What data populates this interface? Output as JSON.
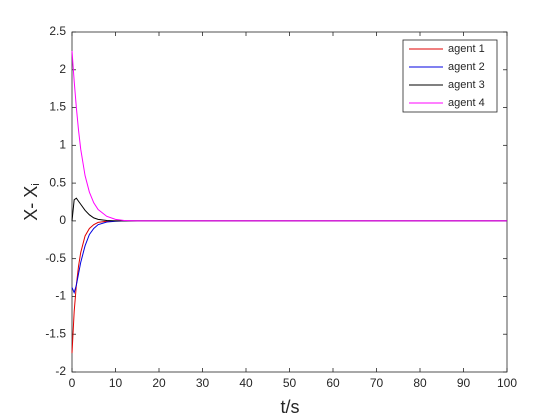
{
  "chart_data": {
    "type": "line",
    "xlabel": "t/s",
    "ylabel": {
      "main": "X- X",
      "sub": "i"
    },
    "x": [
      0,
      0.5,
      1,
      1.5,
      2,
      3,
      4,
      5,
      6,
      8,
      10,
      12,
      15,
      20,
      100
    ],
    "series": [
      {
        "name": "agent 1",
        "color": "#e00000",
        "values": [
          -1.75,
          -1.2,
          -0.85,
          -0.6,
          -0.42,
          -0.2,
          -0.1,
          -0.05,
          -0.02,
          -0.005,
          0,
          0,
          0,
          0,
          0
        ]
      },
      {
        "name": "agent 2",
        "color": "#0000e0",
        "values": [
          -0.88,
          -0.95,
          -0.85,
          -0.7,
          -0.55,
          -0.33,
          -0.18,
          -0.1,
          -0.05,
          -0.015,
          -0.004,
          0,
          0,
          0,
          0
        ]
      },
      {
        "name": "agent 3",
        "color": "#000000",
        "values": [
          0,
          0.28,
          0.3,
          0.26,
          0.22,
          0.14,
          0.08,
          0.04,
          0.02,
          0.005,
          0,
          0,
          0,
          0,
          0
        ]
      },
      {
        "name": "agent 4",
        "color": "#ff00ff",
        "values": [
          2.25,
          1.85,
          1.5,
          1.2,
          0.95,
          0.6,
          0.38,
          0.24,
          0.15,
          0.06,
          0.02,
          0.005,
          0,
          0,
          0
        ]
      }
    ],
    "xlim": [
      0,
      100
    ],
    "xticks": [
      0,
      10,
      20,
      30,
      40,
      50,
      60,
      70,
      80,
      90,
      100
    ],
    "ylim": [
      -2,
      2.5
    ],
    "yticks": [
      -2,
      -1.5,
      -1,
      -0.5,
      0,
      0.5,
      1,
      1.5,
      2,
      2.5
    ],
    "legend": "top-right"
  }
}
